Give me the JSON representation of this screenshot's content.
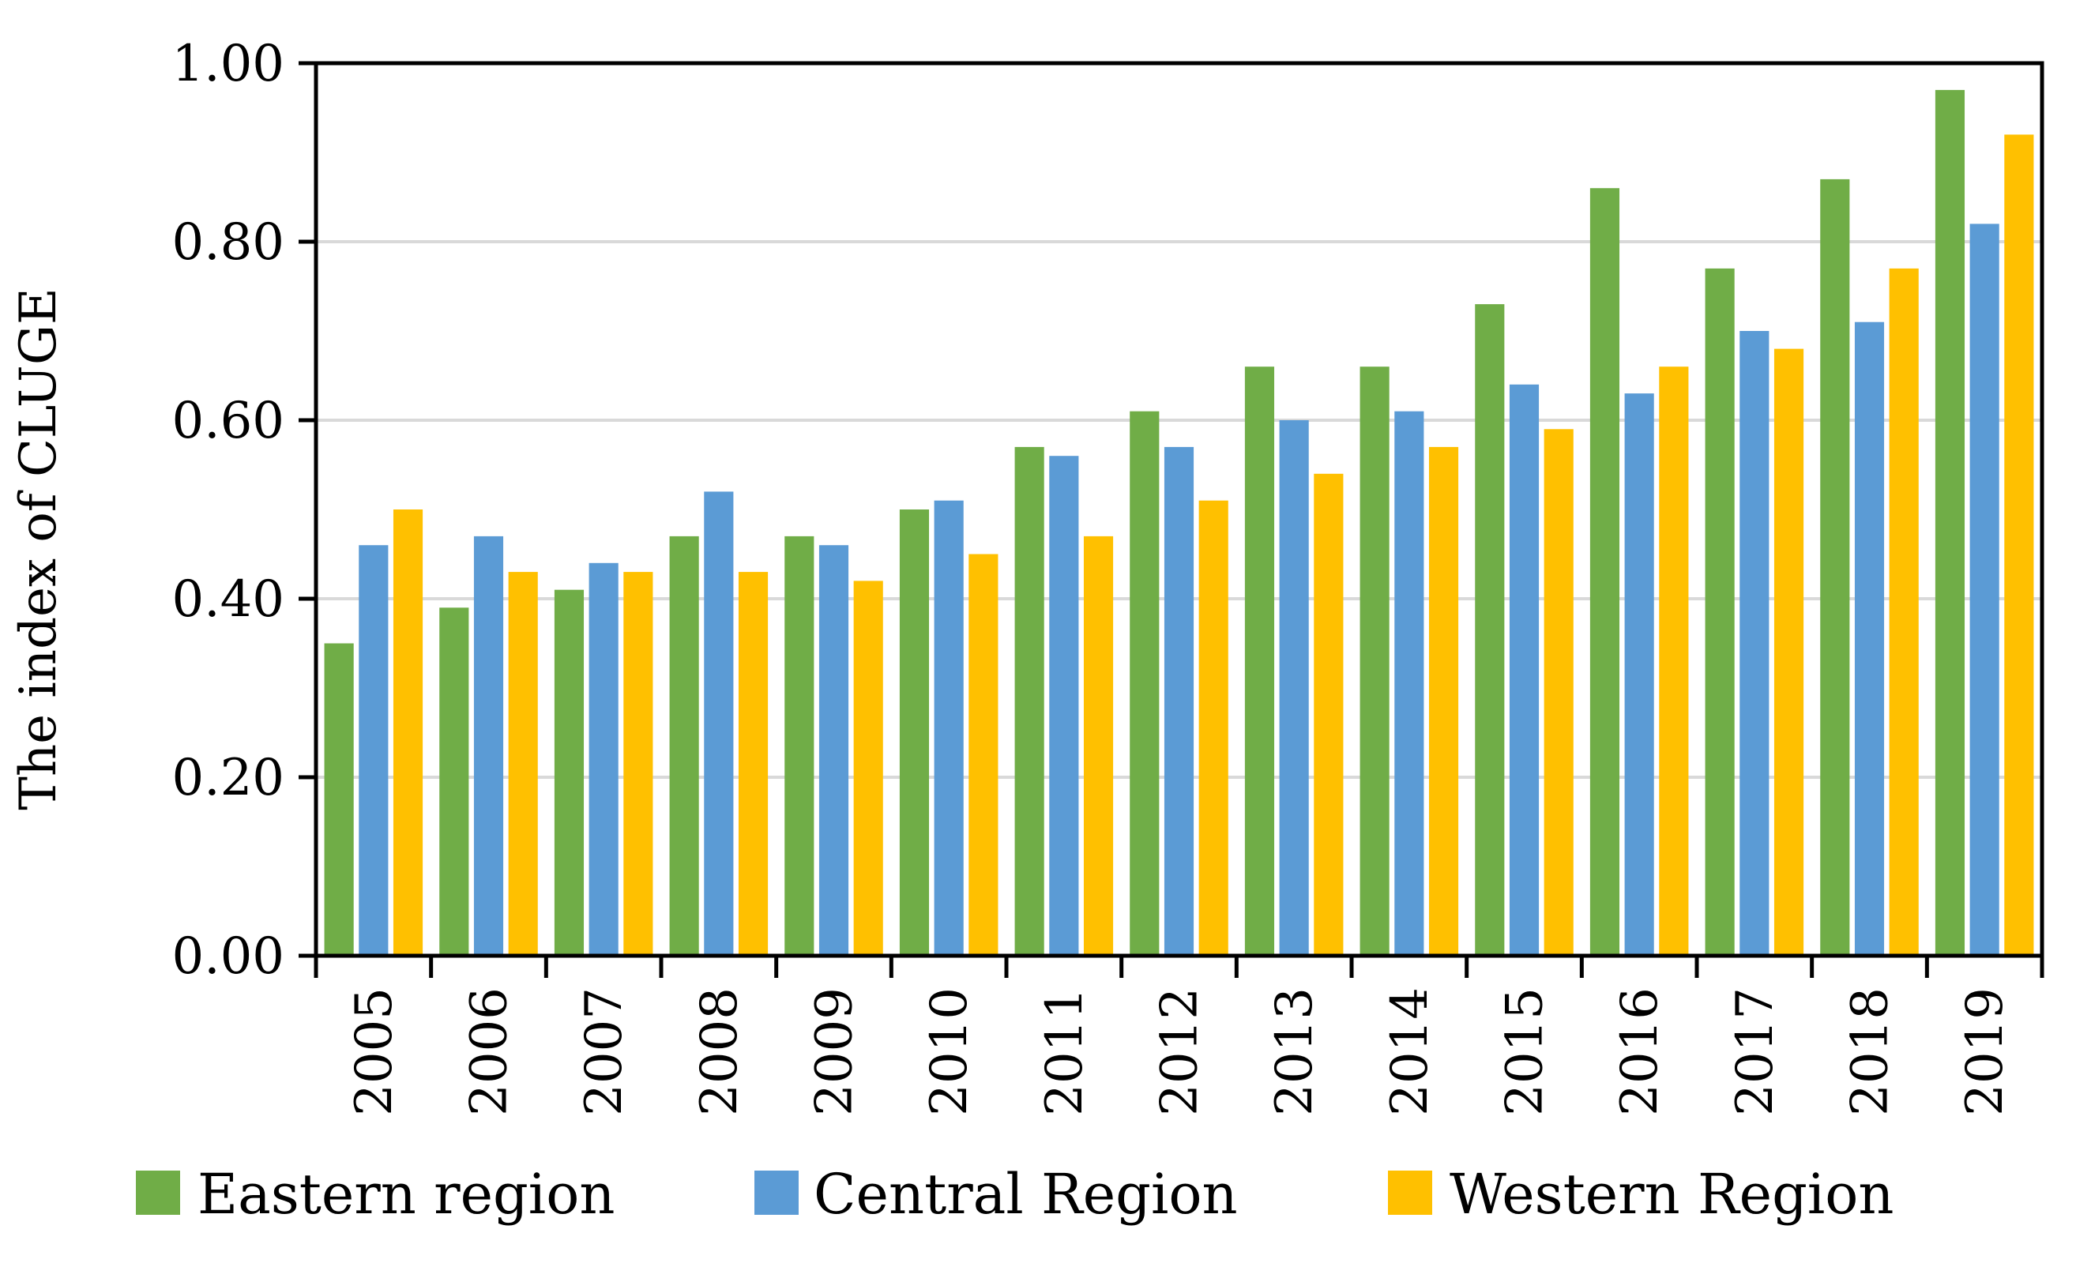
{
  "chart_data": {
    "type": "bar",
    "title": "",
    "xlabel": "",
    "ylabel": "The index of CLUGE",
    "ylim": [
      0,
      1.0
    ],
    "yticks": [
      "0.00",
      "0.20",
      "0.40",
      "0.60",
      "0.80",
      "1.00"
    ],
    "grid": true,
    "legend_position": "bottom",
    "categories": [
      "2005",
      "2006",
      "2007",
      "2008",
      "2009",
      "2010",
      "2011",
      "2012",
      "2013",
      "2014",
      "2015",
      "2016",
      "2017",
      "2018",
      "2019"
    ],
    "series": [
      {
        "name": "Eastern region",
        "color": "#70ad47",
        "values": [
          0.35,
          0.39,
          0.41,
          0.47,
          0.47,
          0.5,
          0.57,
          0.61,
          0.66,
          0.66,
          0.73,
          0.86,
          0.77,
          0.87,
          0.97
        ]
      },
      {
        "name": "Central Region",
        "color": "#5b9bd5",
        "values": [
          0.46,
          0.47,
          0.44,
          0.52,
          0.46,
          0.51,
          0.56,
          0.57,
          0.6,
          0.61,
          0.64,
          0.63,
          0.7,
          0.71,
          0.82
        ]
      },
      {
        "name": "Western Region",
        "color": "#ffc000",
        "values": [
          0.5,
          0.43,
          0.43,
          0.43,
          0.42,
          0.45,
          0.47,
          0.51,
          0.54,
          0.57,
          0.59,
          0.66,
          0.68,
          0.77,
          0.92
        ]
      }
    ]
  }
}
